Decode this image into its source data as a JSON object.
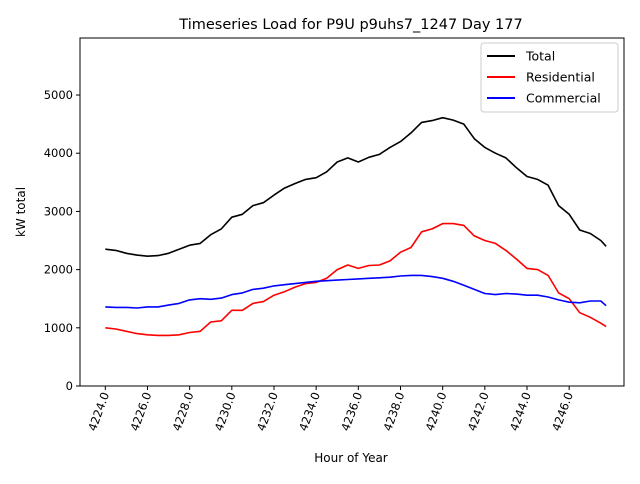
{
  "chart_data": {
    "type": "line",
    "title": "Timeseries Load for P9U p9uhs7_1247  Day 177",
    "xlabel": "Hour of Year",
    "ylabel": "kW total",
    "xlim": [
      4222.8,
      4248.6
    ],
    "ylim": [
      0,
      5980
    ],
    "x_ticks": [
      4224,
      4226,
      4228,
      4230,
      4232,
      4234,
      4236,
      4238,
      4240,
      4242,
      4244,
      4246
    ],
    "x_tick_labels": [
      "4224.0",
      "4226.0",
      "4228.0",
      "4230.0",
      "4232.0",
      "4234.0",
      "4236.0",
      "4238.0",
      "4240.0",
      "4242.0",
      "4244.0",
      "4246.0"
    ],
    "y_ticks": [
      0,
      1000,
      2000,
      3000,
      4000,
      5000
    ],
    "y_tick_labels": [
      "0",
      "1000",
      "2000",
      "3000",
      "4000",
      "5000"
    ],
    "grid": false,
    "legend_position": "top-right",
    "x": [
      4224,
      4224.5,
      4225,
      4225.5,
      4226,
      4226.5,
      4227,
      4227.5,
      4228,
      4228.5,
      4229,
      4229.5,
      4230,
      4230.5,
      4231,
      4231.5,
      4232,
      4232.5,
      4233,
      4233.5,
      4234,
      4234.5,
      4235,
      4235.5,
      4236,
      4236.5,
      4237,
      4237.5,
      4238,
      4238.5,
      4239,
      4239.5,
      4240,
      4240.5,
      4241,
      4241.5,
      4242,
      4242.5,
      4243,
      4243.5,
      4244,
      4244.5,
      4245,
      4245.5,
      4246,
      4246.5,
      4247,
      4247.5,
      4247.75
    ],
    "series": [
      {
        "name": "Total",
        "color": "#000000",
        "values": [
          2350,
          2330,
          2280,
          2250,
          2230,
          2240,
          2280,
          2350,
          2420,
          2450,
          2600,
          2700,
          2900,
          2950,
          3100,
          3150,
          3280,
          3400,
          3480,
          3550,
          3580,
          3680,
          3850,
          3920,
          3850,
          3930,
          3980,
          4100,
          4200,
          4350,
          4530,
          4560,
          4610,
          4570,
          4500,
          4250,
          4100,
          4000,
          3920,
          3750,
          3600,
          3550,
          3450,
          3100,
          2950,
          2680,
          2620,
          2500,
          2400
        ]
      },
      {
        "name": "Residential",
        "color": "#ff0000",
        "values": [
          1000,
          980,
          940,
          900,
          880,
          870,
          870,
          880,
          920,
          940,
          1100,
          1120,
          1300,
          1300,
          1420,
          1450,
          1560,
          1620,
          1700,
          1760,
          1780,
          1850,
          2000,
          2080,
          2020,
          2070,
          2080,
          2150,
          2300,
          2380,
          2650,
          2700,
          2790,
          2790,
          2760,
          2580,
          2500,
          2450,
          2330,
          2180,
          2020,
          2000,
          1900,
          1600,
          1500,
          1260,
          1180,
          1080,
          1020
        ]
      },
      {
        "name": "Commercial",
        "color": "#0000ff",
        "values": [
          1360,
          1350,
          1350,
          1340,
          1360,
          1360,
          1390,
          1420,
          1480,
          1500,
          1490,
          1510,
          1570,
          1600,
          1660,
          1680,
          1720,
          1740,
          1760,
          1780,
          1800,
          1810,
          1820,
          1830,
          1840,
          1850,
          1860,
          1870,
          1890,
          1900,
          1900,
          1880,
          1850,
          1800,
          1730,
          1660,
          1590,
          1570,
          1590,
          1580,
          1560,
          1560,
          1530,
          1480,
          1440,
          1430,
          1460,
          1460,
          1380
        ]
      }
    ]
  }
}
